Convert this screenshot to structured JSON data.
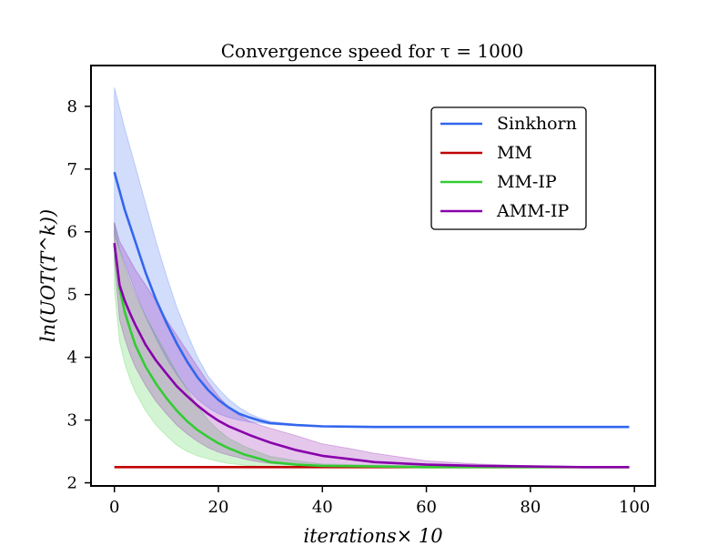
{
  "chart_data": {
    "type": "line",
    "title": "Convergence speed for τ = 1000",
    "xlabel": "iterations× 10",
    "ylabel": "ln(UOT(T^k))",
    "xlim": [
      -4.5,
      104
    ],
    "ylim": [
      1.95,
      8.65
    ],
    "xticks": [
      0,
      20,
      40,
      60,
      80,
      100
    ],
    "yticks": [
      2,
      3,
      4,
      5,
      6,
      7,
      8
    ],
    "grid": false,
    "legend_position": "top-right",
    "series": [
      {
        "name": "Sinkhorn",
        "color": "#3366ee",
        "x": [
          0,
          2,
          4,
          6,
          8,
          10,
          12,
          14,
          16,
          18,
          20,
          22,
          24,
          26,
          28,
          30,
          35,
          40,
          50,
          60,
          70,
          80,
          90,
          99
        ],
        "y": [
          6.95,
          6.35,
          5.85,
          5.35,
          4.92,
          4.55,
          4.22,
          3.93,
          3.68,
          3.48,
          3.32,
          3.2,
          3.1,
          3.04,
          2.99,
          2.95,
          2.92,
          2.9,
          2.89,
          2.89,
          2.89,
          2.89,
          2.89,
          2.89
        ],
        "band_upper": [
          8.3,
          7.65,
          7.05,
          6.45,
          5.85,
          5.3,
          4.8,
          4.38,
          4.0,
          3.7,
          3.5,
          3.33,
          3.2,
          3.1,
          3.03,
          2.98,
          2.93,
          2.91,
          2.9,
          2.9,
          2.89,
          2.89,
          2.89,
          2.89
        ],
        "band_lower": [
          5.95,
          5.5,
          5.05,
          4.65,
          4.3,
          3.98,
          3.72,
          3.5,
          3.33,
          3.2,
          3.1,
          3.04,
          3.0,
          2.97,
          2.95,
          2.93,
          2.91,
          2.9,
          2.89,
          2.89,
          2.89,
          2.89,
          2.89,
          2.89
        ]
      },
      {
        "name": "MM",
        "color": "#c00000",
        "x": [
          0,
          20,
          40,
          60,
          80,
          99
        ],
        "y": [
          2.25,
          2.25,
          2.25,
          2.25,
          2.25,
          2.25
        ]
      },
      {
        "name": "MM-IP",
        "color": "#33cc33",
        "x": [
          0,
          1,
          2,
          3,
          4,
          6,
          8,
          10,
          12,
          14,
          16,
          18,
          20,
          22,
          25,
          28,
          30,
          35,
          40,
          50,
          60,
          70,
          80,
          99
        ],
        "y": [
          5.8,
          5.1,
          4.72,
          4.45,
          4.2,
          3.85,
          3.58,
          3.35,
          3.15,
          2.98,
          2.84,
          2.73,
          2.63,
          2.55,
          2.45,
          2.38,
          2.33,
          2.29,
          2.27,
          2.26,
          2.25,
          2.25,
          2.25,
          2.25
        ],
        "band_upper": [
          6.15,
          5.7,
          5.45,
          5.2,
          5.0,
          4.65,
          4.35,
          4.05,
          3.75,
          3.48,
          3.22,
          3.0,
          2.84,
          2.71,
          2.58,
          2.48,
          2.42,
          2.35,
          2.3,
          2.28,
          2.27,
          2.26,
          2.26,
          2.25
        ],
        "band_lower": [
          5.1,
          4.25,
          3.9,
          3.65,
          3.45,
          3.15,
          2.92,
          2.75,
          2.6,
          2.5,
          2.43,
          2.38,
          2.34,
          2.31,
          2.28,
          2.26,
          2.25,
          2.24,
          2.24,
          2.24,
          2.24,
          2.24,
          2.24,
          2.24
        ]
      },
      {
        "name": "AMM-IP",
        "color": "#8800aa",
        "x": [
          0,
          1,
          2,
          3,
          4,
          6,
          8,
          10,
          12,
          14,
          16,
          18,
          20,
          22,
          24,
          26,
          28,
          30,
          35,
          40,
          45,
          50,
          60,
          70,
          80,
          90,
          99
        ],
        "y": [
          5.82,
          5.15,
          4.9,
          4.7,
          4.52,
          4.2,
          3.95,
          3.74,
          3.54,
          3.38,
          3.23,
          3.1,
          2.99,
          2.9,
          2.83,
          2.76,
          2.7,
          2.64,
          2.52,
          2.43,
          2.38,
          2.33,
          2.29,
          2.27,
          2.26,
          2.25,
          2.25
        ],
        "band_upper": [
          6.15,
          5.85,
          5.7,
          5.55,
          5.4,
          5.15,
          4.9,
          4.6,
          4.35,
          4.1,
          3.85,
          3.6,
          3.38,
          3.2,
          3.08,
          2.98,
          2.92,
          2.87,
          2.75,
          2.62,
          2.55,
          2.47,
          2.35,
          2.3,
          2.27,
          2.26,
          2.25
        ],
        "band_lower": [
          5.55,
          4.6,
          4.3,
          4.05,
          3.85,
          3.55,
          3.3,
          3.1,
          2.92,
          2.78,
          2.66,
          2.56,
          2.49,
          2.44,
          2.4,
          2.36,
          2.33,
          2.31,
          2.28,
          2.26,
          2.25,
          2.25,
          2.24,
          2.24,
          2.24,
          2.24,
          2.24
        ]
      }
    ]
  }
}
